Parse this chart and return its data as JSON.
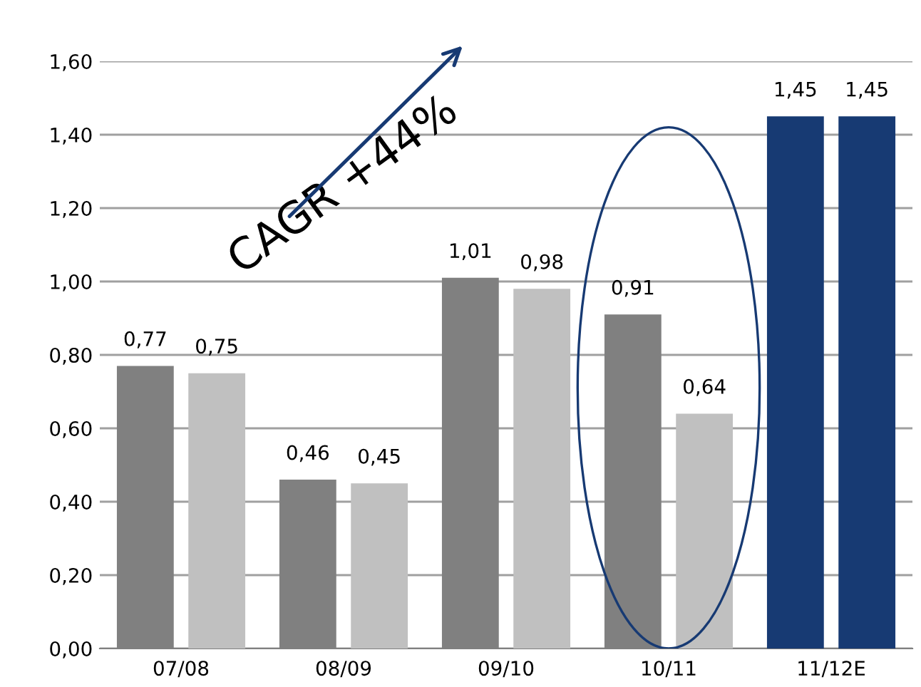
{
  "chart_data": {
    "type": "bar",
    "categories": [
      "07/08",
      "08/09",
      "09/10",
      "10/11",
      "11/12E"
    ],
    "series": [
      {
        "colors": [
          "#808080",
          "#808080",
          "#808080",
          "#808080",
          "#173a73"
        ],
        "values": [
          0.77,
          0.46,
          1.01,
          0.91,
          1.45
        ],
        "value_labels": [
          "0,77",
          "0,46",
          "1,01",
          "0,91",
          "1,45"
        ]
      },
      {
        "colors": [
          "#c0c0c0",
          "#c0c0c0",
          "#c0c0c0",
          "#c0c0c0",
          "#173a73"
        ],
        "values": [
          0.75,
          0.45,
          0.98,
          0.64,
          1.45
        ],
        "value_labels": [
          "0,75",
          "0,45",
          "0,98",
          "0,64",
          "1,45"
        ]
      }
    ],
    "ylim": [
      0,
      1.6
    ],
    "yticks": [
      {
        "value": 0,
        "label": "0,00"
      },
      {
        "value": 0.2,
        "label": "0,20"
      },
      {
        "value": 0.4,
        "label": "0,40"
      },
      {
        "value": 0.6,
        "label": "0,60"
      },
      {
        "value": 0.8,
        "label": "0,80"
      },
      {
        "value": 1.0,
        "label": "1,00"
      },
      {
        "value": 1.2,
        "label": "1,20"
      },
      {
        "value": 1.4,
        "label": "1,40"
      },
      {
        "value": 1.6,
        "label": "1,60"
      }
    ],
    "grid": "y",
    "legend": false,
    "annotations": [
      "CAGR +44%"
    ]
  }
}
